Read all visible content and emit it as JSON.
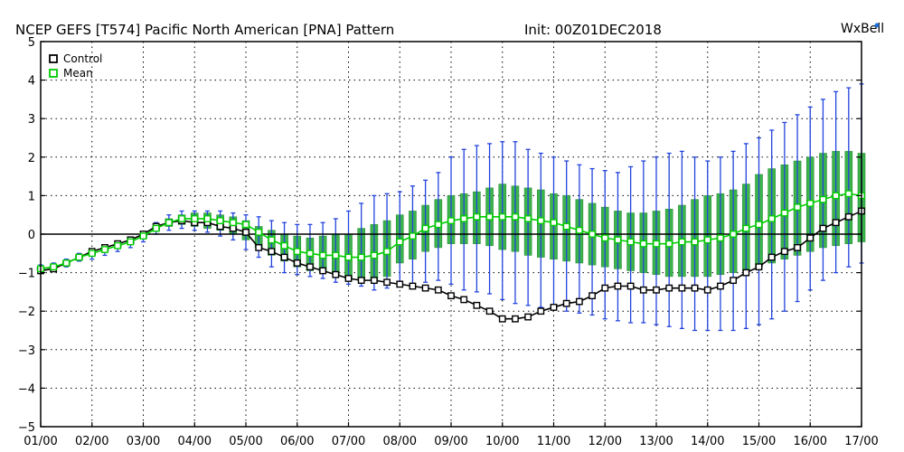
{
  "chart_data": {
    "type": "line",
    "title": "NCEP GEFS [T574] Pacific North American [PNA] Pattern",
    "init_label": "Init: 00Z01DEC2018",
    "brand": "WxBell",
    "xlabel": "",
    "ylabel": "",
    "ylim": [
      -5,
      5
    ],
    "xlim": [
      0,
      16
    ],
    "yticks": [
      "5",
      "4",
      "3",
      "2",
      "1",
      "0",
      "−1",
      "−2",
      "−3",
      "−4",
      "−5"
    ],
    "xticks": [
      "01/00",
      "02/00",
      "03/00",
      "04/00",
      "05/00",
      "06/00",
      "07/00",
      "08/00",
      "09/00",
      "10/00",
      "11/00",
      "12/00",
      "13/00",
      "14/00",
      "15/00",
      "16/00",
      "17/00"
    ],
    "grid": true,
    "legend_position": "top-left",
    "x": [
      0,
      0.25,
      0.5,
      0.75,
      1,
      1.25,
      1.5,
      1.75,
      2,
      2.25,
      2.5,
      2.75,
      3,
      3.25,
      3.5,
      3.75,
      4,
      4.25,
      4.5,
      4.75,
      5,
      5.25,
      5.5,
      5.75,
      6,
      6.25,
      6.5,
      6.75,
      7,
      7.25,
      7.5,
      7.75,
      8,
      8.25,
      8.5,
      8.75,
      9,
      9.25,
      9.5,
      9.75,
      10,
      10.25,
      10.5,
      10.75,
      11,
      11.25,
      11.5,
      11.75,
      12,
      12.25,
      12.5,
      12.75,
      13,
      13.25,
      13.5,
      13.75,
      14,
      14.25,
      14.5,
      14.75,
      15,
      15.25,
      15.5,
      15.75,
      16
    ],
    "series": [
      {
        "name": "Control",
        "color": "#000000",
        "values": [
          -0.95,
          -0.9,
          -0.75,
          -0.6,
          -0.45,
          -0.35,
          -0.25,
          -0.15,
          0.0,
          0.2,
          0.3,
          0.35,
          0.3,
          0.3,
          0.2,
          0.15,
          0.05,
          -0.35,
          -0.45,
          -0.6,
          -0.75,
          -0.85,
          -0.95,
          -1.05,
          -1.15,
          -1.2,
          -1.2,
          -1.25,
          -1.3,
          -1.35,
          -1.4,
          -1.45,
          -1.6,
          -1.7,
          -1.85,
          -2.0,
          -2.2,
          -2.2,
          -2.15,
          -2.0,
          -1.9,
          -1.8,
          -1.75,
          -1.6,
          -1.4,
          -1.35,
          -1.35,
          -1.45,
          -1.45,
          -1.4,
          -1.4,
          -1.4,
          -1.45,
          -1.35,
          -1.2,
          -1.0,
          -0.85,
          -0.6,
          -0.45,
          -0.35,
          -0.1,
          0.15,
          0.3,
          0.45,
          0.6
        ]
      },
      {
        "name": "Mean",
        "color": "#00cc00",
        "values": [
          -0.9,
          -0.85,
          -0.75,
          -0.6,
          -0.5,
          -0.4,
          -0.3,
          -0.2,
          -0.05,
          0.15,
          0.3,
          0.4,
          0.4,
          0.4,
          0.35,
          0.3,
          0.25,
          0.05,
          -0.15,
          -0.3,
          -0.45,
          -0.5,
          -0.55,
          -0.55,
          -0.6,
          -0.6,
          -0.55,
          -0.45,
          -0.2,
          -0.05,
          0.15,
          0.25,
          0.35,
          0.4,
          0.45,
          0.45,
          0.45,
          0.45,
          0.4,
          0.35,
          0.3,
          0.2,
          0.1,
          0.0,
          -0.1,
          -0.15,
          -0.2,
          -0.25,
          -0.25,
          -0.25,
          -0.2,
          -0.2,
          -0.15,
          -0.1,
          0.0,
          0.15,
          0.25,
          0.4,
          0.55,
          0.7,
          0.8,
          0.9,
          1.0,
          1.05,
          1.0
        ]
      }
    ],
    "spread_band": {
      "name": "Ensemble interquartile range",
      "color": "#3cb44b",
      "low": [
        -0.95,
        -0.9,
        -0.8,
        -0.65,
        -0.55,
        -0.45,
        -0.35,
        -0.25,
        -0.1,
        0.1,
        0.2,
        0.25,
        0.2,
        0.15,
        0.1,
        0.0,
        -0.15,
        -0.35,
        -0.55,
        -0.7,
        -0.85,
        -0.95,
        -1.0,
        -1.05,
        -1.15,
        -1.2,
        -1.2,
        -1.1,
        -0.75,
        -0.65,
        -0.45,
        -0.35,
        -0.25,
        -0.25,
        -0.25,
        -0.3,
        -0.4,
        -0.45,
        -0.55,
        -0.6,
        -0.65,
        -0.7,
        -0.75,
        -0.8,
        -0.85,
        -0.9,
        -0.95,
        -1.0,
        -1.05,
        -1.1,
        -1.1,
        -1.1,
        -1.1,
        -1.05,
        -1.0,
        -0.95,
        -0.85,
        -0.75,
        -0.65,
        -0.55,
        -0.45,
        -0.35,
        -0.3,
        -0.25,
        -0.2
      ],
      "high": [
        -0.85,
        -0.8,
        -0.7,
        -0.55,
        -0.45,
        -0.35,
        -0.25,
        -0.15,
        0.0,
        0.2,
        0.4,
        0.5,
        0.55,
        0.55,
        0.5,
        0.45,
        0.35,
        0.2,
        0.1,
        0.0,
        -0.05,
        -0.1,
        -0.05,
        0.0,
        0.0,
        0.15,
        0.25,
        0.35,
        0.5,
        0.6,
        0.75,
        0.9,
        1.0,
        1.05,
        1.1,
        1.2,
        1.3,
        1.25,
        1.2,
        1.15,
        1.05,
        1.0,
        0.9,
        0.8,
        0.7,
        0.6,
        0.55,
        0.55,
        0.6,
        0.65,
        0.75,
        0.9,
        1.0,
        1.05,
        1.15,
        1.3,
        1.55,
        1.7,
        1.8,
        1.9,
        2.0,
        2.1,
        2.15,
        2.15,
        2.1
      ]
    },
    "whiskers": {
      "name": "Ensemble min/max",
      "color": "#2244dd",
      "low": [
        -1.0,
        -0.95,
        -0.85,
        -0.7,
        -0.65,
        -0.55,
        -0.45,
        -0.35,
        -0.2,
        0.0,
        0.1,
        0.15,
        0.1,
        0.05,
        -0.05,
        -0.15,
        -0.4,
        -0.6,
        -0.85,
        -1.0,
        -1.05,
        -1.1,
        -1.15,
        -1.25,
        -1.3,
        -1.35,
        -1.45,
        -1.4,
        -1.35,
        -1.3,
        -1.25,
        -1.2,
        -1.3,
        -1.45,
        -1.5,
        -1.55,
        -1.7,
        -1.8,
        -1.85,
        -1.9,
        -1.95,
        -2.0,
        -2.05,
        -2.1,
        -2.2,
        -2.25,
        -2.3,
        -2.3,
        -2.35,
        -2.4,
        -2.45,
        -2.5,
        -2.5,
        -2.5,
        -2.5,
        -2.45,
        -2.35,
        -2.2,
        -2.0,
        -1.75,
        -1.45,
        -1.2,
        -1.0,
        -0.85,
        -0.75
      ],
      "high": [
        -0.8,
        -0.75,
        -0.65,
        -0.5,
        -0.4,
        -0.3,
        -0.2,
        -0.1,
        0.05,
        0.3,
        0.5,
        0.6,
        0.6,
        0.6,
        0.6,
        0.55,
        0.5,
        0.45,
        0.35,
        0.3,
        0.25,
        0.25,
        0.3,
        0.4,
        0.6,
        0.8,
        1.0,
        1.05,
        1.1,
        1.25,
        1.4,
        1.6,
        2.0,
        2.2,
        2.3,
        2.35,
        2.4,
        2.4,
        2.2,
        2.1,
        2.0,
        1.9,
        1.8,
        1.7,
        1.65,
        1.6,
        1.75,
        1.9,
        2.0,
        2.1,
        2.15,
        2.0,
        1.9,
        2.0,
        2.15,
        2.35,
        2.5,
        2.7,
        2.9,
        3.1,
        3.3,
        3.5,
        3.7,
        3.8,
        3.9
      ]
    }
  },
  "legend": {
    "items": [
      {
        "label": "Control",
        "color": "#000000"
      },
      {
        "label": "Mean",
        "color": "#00cc00"
      }
    ]
  }
}
